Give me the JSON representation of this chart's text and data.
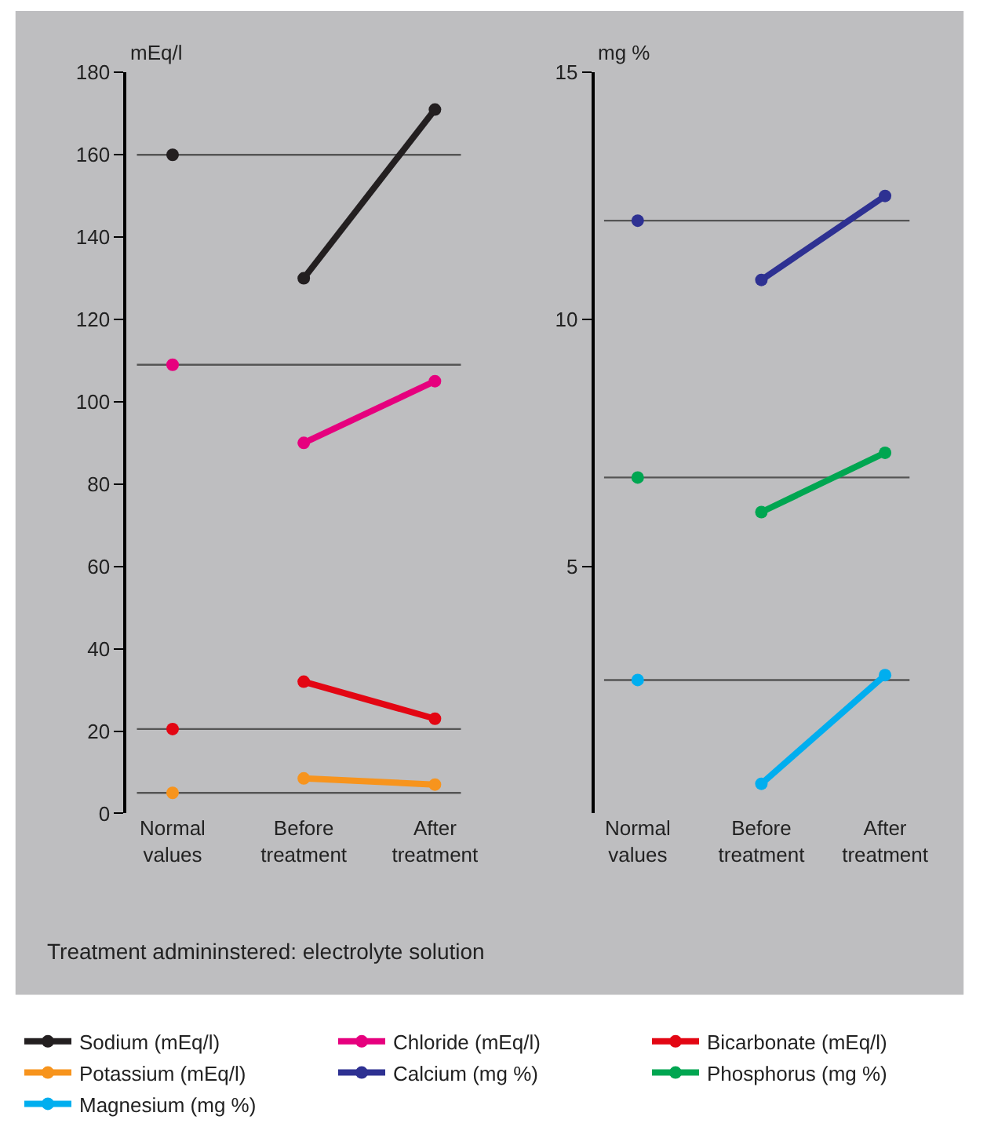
{
  "chart_data": [
    {
      "type": "line",
      "ylabel": "mEq/l",
      "categories": [
        "Normal\nvalues",
        "Before\ntreatment",
        "After\ntreatment"
      ],
      "ylim": [
        0,
        180
      ],
      "yticks": [
        0,
        20,
        40,
        60,
        80,
        100,
        120,
        140,
        160,
        180
      ],
      "grid": false,
      "marker": "circle",
      "line_style": "solid",
      "legend": "bottom",
      "series": [
        {
          "name": "Sodium (mEq/l)",
          "color": "#231f20",
          "values": [
            null,
            130,
            171
          ]
        },
        {
          "name": "Chloride (mEq/l)",
          "color": "#e6007e",
          "values": [
            null,
            90,
            105
          ]
        },
        {
          "name": "Bicarbonate (mEq/l)",
          "color": "#e30613",
          "values": [
            null,
            32,
            23
          ]
        },
        {
          "name": "Potassium (mEq/l)",
          "color": "#f7941d",
          "values": [
            null,
            8.5,
            7
          ]
        },
        {
          "type": "scatter",
          "color": "#231f20",
          "values": [
            160,
            null,
            null
          ]
        },
        {
          "type": "scatter",
          "color": "#e6007e",
          "values": [
            109,
            null,
            null
          ]
        },
        {
          "type": "scatter",
          "color": "#e30613",
          "values": [
            20.5,
            null,
            null
          ]
        },
        {
          "type": "scatter",
          "color": "#f7941d",
          "values": [
            5,
            null,
            null
          ]
        }
      ],
      "ref_lines": [
        {
          "axis": "y",
          "value": 160,
          "color": "#555555"
        },
        {
          "axis": "y",
          "value": 109,
          "color": "#555555"
        },
        {
          "axis": "y",
          "value": 20.5,
          "color": "#555555"
        },
        {
          "axis": "y",
          "value": 5,
          "color": "#555555"
        }
      ],
      "annotations": [
        "Treatment admininstered: electrolyte solution"
      ]
    },
    {
      "type": "line",
      "ylabel": "mg %",
      "categories": [
        "Normal\nvalues",
        "Before\ntreatment",
        "After\ntreatment"
      ],
      "ylim": [
        0,
        15
      ],
      "yticks": [
        5,
        10,
        15
      ],
      "grid": false,
      "marker": "circle",
      "line_style": "solid",
      "legend": "bottom",
      "series": [
        {
          "name": "Calcium (mg %)",
          "color": "#2e3192",
          "values": [
            null,
            10.8,
            12.5
          ]
        },
        {
          "name": "Phosphorus (mg %)",
          "color": "#00a651",
          "values": [
            null,
            6.1,
            7.3
          ]
        },
        {
          "name": "Magnesium (mg %)",
          "color": "#00aeef",
          "values": [
            null,
            0.6,
            2.8
          ]
        },
        {
          "type": "scatter",
          "color": "#2e3192",
          "values": [
            12,
            null,
            null
          ]
        },
        {
          "type": "scatter",
          "color": "#00a651",
          "values": [
            6.8,
            null,
            null
          ]
        },
        {
          "type": "scatter",
          "color": "#00aeef",
          "values": [
            2.7,
            null,
            null
          ]
        }
      ],
      "ref_lines": [
        {
          "axis": "y",
          "value": 12,
          "color": "#555555"
        },
        {
          "axis": "y",
          "value": 6.8,
          "color": "#555555"
        },
        {
          "axis": "y",
          "value": 2.7,
          "color": "#555555"
        }
      ]
    }
  ]
}
